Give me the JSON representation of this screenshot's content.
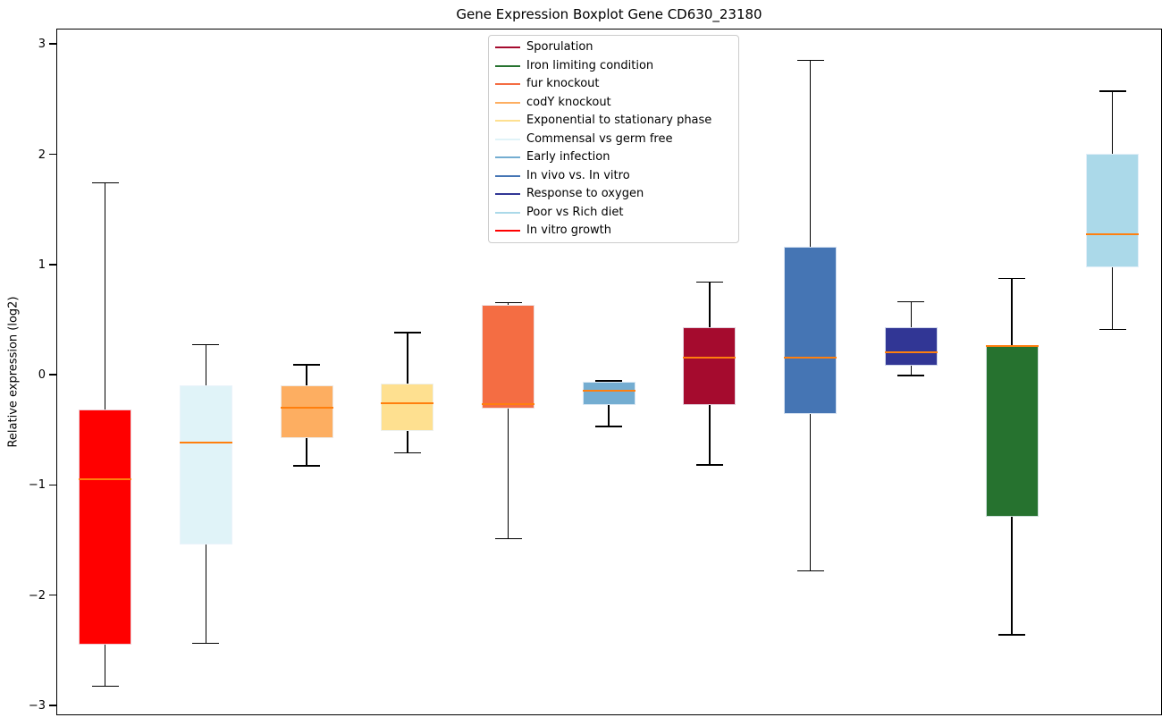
{
  "chart_data": {
    "type": "boxplot",
    "title": "Gene Expression Boxplot Gene CD630_23180",
    "xlabel": "",
    "ylabel": "Relative expression (log2)",
    "ylim": [
      -3.09,
      3.14
    ],
    "yticks": [
      3,
      2,
      1,
      0,
      -1,
      -2,
      -3
    ],
    "ytick_labels": [
      "3",
      "2",
      "1",
      "0",
      "−1",
      "−2",
      "−3"
    ],
    "grid": false,
    "median_color": "#ff7f0e",
    "whisker_color": "#000000",
    "legend_position": "upper center-left inside plot",
    "boxes": [
      {
        "name": "In vitro growth",
        "color": "#ff0000",
        "whislo": -2.82,
        "q1": -2.44,
        "med": -0.94,
        "q3": -0.31,
        "whishi": 1.75
      },
      {
        "name": "Commensal vs germ free",
        "color": "#e0f3f8",
        "whislo": -2.43,
        "q1": -1.53,
        "med": -0.61,
        "q3": -0.09,
        "whishi": 0.28
      },
      {
        "name": "codY knockout",
        "color": "#fdae61",
        "whislo": -0.82,
        "q1": -0.57,
        "med": -0.29,
        "q3": -0.09,
        "whishi": 0.1
      },
      {
        "name": "Exponential to stationary phase",
        "color": "#fee090",
        "whislo": -0.7,
        "q1": -0.5,
        "med": -0.25,
        "q3": -0.07,
        "whishi": 0.39
      },
      {
        "name": "fur knockout",
        "color": "#f46d43",
        "whislo": -1.48,
        "q1": -0.3,
        "med": -0.26,
        "q3": 0.64,
        "whishi": 0.66
      },
      {
        "name": "Early infection",
        "color": "#74add1",
        "whislo": -0.46,
        "q1": -0.27,
        "med": -0.14,
        "q3": -0.06,
        "whishi": -0.05
      },
      {
        "name": "Sporulation",
        "color": "#a50b2e",
        "whislo": -0.81,
        "q1": -0.27,
        "med": 0.16,
        "q3": 0.44,
        "whishi": 0.85
      },
      {
        "name": "In vivo vs. In vitro",
        "color": "#4575b4",
        "whislo": -1.77,
        "q1": -0.35,
        "med": 0.16,
        "q3": 1.17,
        "whishi": 2.86
      },
      {
        "name": "Response to oxygen",
        "color": "#313695",
        "whislo": 0.0,
        "q1": 0.09,
        "med": 0.21,
        "q3": 0.44,
        "whishi": 0.67
      },
      {
        "name": "Iron limiting condition",
        "color": "#26722f",
        "whislo": -2.35,
        "q1": -1.28,
        "med": 0.27,
        "q3": 0.28,
        "whishi": 0.88
      },
      {
        "name": "Poor vs Rich diet",
        "color": "#abd9e9",
        "whislo": 0.42,
        "q1": 0.98,
        "med": 1.28,
        "q3": 2.01,
        "whishi": 2.58
      }
    ],
    "legend": [
      {
        "label": "Sporulation",
        "color": "#a50b2e"
      },
      {
        "label": "Iron limiting condition",
        "color": "#26722f"
      },
      {
        "label": "fur knockout",
        "color": "#f46d43"
      },
      {
        "label": "codY knockout",
        "color": "#fdae61"
      },
      {
        "label": "Exponential to stationary phase",
        "color": "#fee090"
      },
      {
        "label": "Commensal vs germ free",
        "color": "#e0f3f8"
      },
      {
        "label": "Early infection",
        "color": "#74add1"
      },
      {
        "label": "In vivo vs. In vitro",
        "color": "#4575b4"
      },
      {
        "label": "Response to oxygen",
        "color": "#313695"
      },
      {
        "label": "Poor vs Rich diet",
        "color": "#abd9e9"
      },
      {
        "label": "In vitro growth",
        "color": "#ff0000"
      }
    ]
  }
}
